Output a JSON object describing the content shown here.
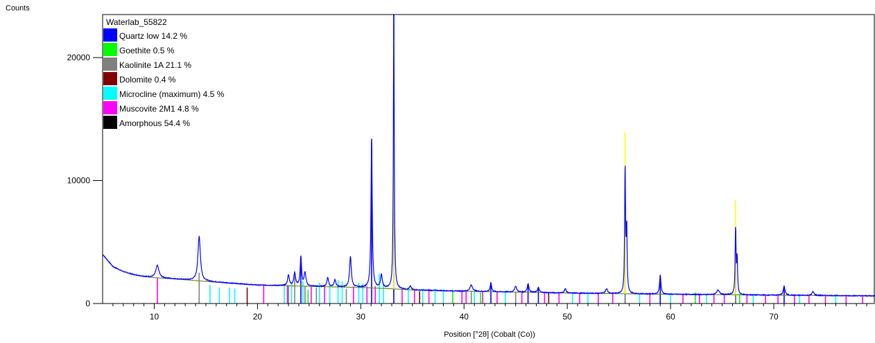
{
  "chart_data": {
    "type": "line",
    "title": "Waterlab_55822",
    "xlabel": "Position [°2θ] (Cobalt (Co))",
    "ylabel": "Counts",
    "xlim": [
      5,
      79.8
    ],
    "ylim": [
      0,
      23500
    ],
    "x_ticks": [
      10,
      20,
      30,
      40,
      50,
      60,
      70
    ],
    "y_ticks": [
      0,
      10000,
      20000
    ],
    "legend_position": "top-left",
    "background": {
      "baseline": [
        [
          5,
          4000
        ],
        [
          6,
          3000
        ],
        [
          7,
          2600
        ],
        [
          8,
          2350
        ],
        [
          9,
          2200
        ],
        [
          10,
          2100
        ],
        [
          12,
          2000
        ],
        [
          15,
          1800
        ],
        [
          20,
          1500
        ],
        [
          25,
          1400
        ],
        [
          30,
          1300
        ],
        [
          33,
          1200
        ],
        [
          35,
          1100
        ],
        [
          40,
          1000
        ],
        [
          50,
          850
        ],
        [
          60,
          750
        ],
        [
          70,
          680
        ],
        [
          79.8,
          620
        ]
      ]
    },
    "peaks": [
      {
        "x": 10.3,
        "y": 3100,
        "w": 0.18
      },
      {
        "x": 14.35,
        "y": 5500,
        "w": 0.14
      },
      {
        "x": 23.0,
        "y": 2300,
        "w": 0.1
      },
      {
        "x": 23.6,
        "y": 2500,
        "w": 0.1
      },
      {
        "x": 24.2,
        "y": 3800,
        "w": 0.08
      },
      {
        "x": 24.6,
        "y": 2500,
        "w": 0.1
      },
      {
        "x": 26.8,
        "y": 2100,
        "w": 0.1
      },
      {
        "x": 27.5,
        "y": 1900,
        "w": 0.1
      },
      {
        "x": 29.0,
        "y": 3800,
        "w": 0.1
      },
      {
        "x": 31.05,
        "y": 13400,
        "w": 0.07
      },
      {
        "x": 32.0,
        "y": 2300,
        "w": 0.1
      },
      {
        "x": 33.2,
        "y": 23500,
        "w": 0.05
      },
      {
        "x": 34.8,
        "y": 1400,
        "w": 0.1
      },
      {
        "x": 40.7,
        "y": 1500,
        "w": 0.15
      },
      {
        "x": 42.6,
        "y": 1700,
        "w": 0.08
      },
      {
        "x": 45.0,
        "y": 1400,
        "w": 0.12
      },
      {
        "x": 46.2,
        "y": 1600,
        "w": 0.1
      },
      {
        "x": 47.2,
        "y": 1300,
        "w": 0.1
      },
      {
        "x": 49.8,
        "y": 1200,
        "w": 0.1
      },
      {
        "x": 53.8,
        "y": 1200,
        "w": 0.12
      },
      {
        "x": 55.6,
        "y": 11000,
        "w": 0.05
      },
      {
        "x": 55.75,
        "y": 6000,
        "w": 0.05
      },
      {
        "x": 59.0,
        "y": 2300,
        "w": 0.08
      },
      {
        "x": 64.6,
        "y": 1100,
        "w": 0.15
      },
      {
        "x": 66.3,
        "y": 6200,
        "w": 0.05
      },
      {
        "x": 66.45,
        "y": 3600,
        "w": 0.05
      },
      {
        "x": 71.0,
        "y": 1400,
        "w": 0.1
      },
      {
        "x": 73.8,
        "y": 950,
        "w": 0.12
      }
    ],
    "overlays": [
      {
        "x": 33.2,
        "y": 21500,
        "color": "#ffff00"
      },
      {
        "x": 55.6,
        "y": 13900,
        "color": "#ffff00"
      },
      {
        "x": 66.3,
        "y": 8400,
        "color": "#ffff00"
      }
    ],
    "series": [
      {
        "name": "Quartz low 14.2 %",
        "color": "#0000ff",
        "sticks": [
          [
            24.2,
            3800
          ],
          [
            31.05,
            13400
          ],
          [
            33.2,
            23500
          ],
          [
            42.6,
            1700
          ],
          [
            46.2,
            1600
          ],
          [
            47.2,
            1300
          ],
          [
            55.6,
            11000
          ],
          [
            59.0,
            2300
          ],
          [
            66.3,
            6200
          ],
          [
            71.0,
            1400
          ]
        ]
      },
      {
        "name": "Goethite 0.5 %",
        "color": "#00ff00",
        "sticks": [
          [
            24.9,
            1100
          ],
          [
            38.9,
            1000
          ],
          [
            41.6,
            900
          ],
          [
            62.4,
            900
          ],
          [
            66.7,
            800
          ]
        ]
      },
      {
        "name": "Kaolinite 1A 21.1 %",
        "color": "#808080",
        "sticks": [
          [
            14.35,
            2500
          ],
          [
            23.0,
            1500
          ],
          [
            23.6,
            2400
          ],
          [
            24.6,
            1400
          ],
          [
            25.7,
            1300
          ],
          [
            28.6,
            1200
          ],
          [
            40.7,
            1000
          ],
          [
            45.0,
            900
          ],
          [
            55.6,
            10900
          ],
          [
            66.3,
            6000
          ]
        ]
      },
      {
        "name": "Dolomite 0.4 %",
        "color": "#800000",
        "sticks": [
          [
            19.0,
            1300
          ],
          [
            35.7,
            1000
          ],
          [
            48.2,
            900
          ]
        ]
      },
      {
        "name": "Microcline (maximum) 4.5 %",
        "color": "#00ffff",
        "sticks": [
          [
            15.4,
            1500
          ],
          [
            16.3,
            1300
          ],
          [
            17.3,
            1300
          ],
          [
            17.8,
            1200
          ],
          [
            22.6,
            1500
          ],
          [
            23.3,
            1600
          ],
          [
            24.4,
            1800
          ],
          [
            26.0,
            1700
          ],
          [
            27.0,
            1600
          ],
          [
            27.8,
            1900
          ],
          [
            28.2,
            1800
          ],
          [
            29.8,
            1700
          ],
          [
            30.2,
            1600
          ],
          [
            31.8,
            2400
          ],
          [
            32.2,
            1700
          ],
          [
            34.6,
            1300
          ],
          [
            36.0,
            1200
          ],
          [
            37.2,
            1200
          ],
          [
            38.0,
            1100
          ],
          [
            41.0,
            1000
          ],
          [
            44.0,
            950
          ],
          [
            50.5,
            900
          ],
          [
            52.0,
            850
          ],
          [
            57.0,
            800
          ],
          [
            60.0,
            800
          ],
          [
            63.5,
            800
          ],
          [
            68.0,
            750
          ],
          [
            72.5,
            700
          ],
          [
            76.0,
            650
          ]
        ]
      },
      {
        "name": "Muscovite 2M1 4.8 %",
        "color": "#ff00ff",
        "sticks": [
          [
            10.3,
            2100
          ],
          [
            20.6,
            1500
          ],
          [
            22.9,
            1500
          ],
          [
            25.2,
            1400
          ],
          [
            26.5,
            1500
          ],
          [
            29.3,
            1400
          ],
          [
            30.6,
            1400
          ],
          [
            31.4,
            1400
          ],
          [
            34.0,
            1200
          ],
          [
            35.2,
            1200
          ],
          [
            36.6,
            1200
          ],
          [
            39.8,
            1000
          ],
          [
            40.2,
            1100
          ],
          [
            41.8,
            1000
          ],
          [
            43.2,
            1000
          ],
          [
            45.6,
            950
          ],
          [
            47.8,
            900
          ],
          [
            49.2,
            900
          ],
          [
            51.2,
            850
          ],
          [
            53.0,
            850
          ],
          [
            54.4,
            850
          ],
          [
            58.0,
            800
          ],
          [
            61.2,
            800
          ],
          [
            62.8,
            800
          ],
          [
            64.2,
            800
          ],
          [
            65.2,
            780
          ],
          [
            67.4,
            750
          ],
          [
            69.2,
            730
          ],
          [
            70.4,
            720
          ],
          [
            72.0,
            700
          ],
          [
            73.4,
            700
          ],
          [
            75.0,
            660
          ],
          [
            77.0,
            640
          ],
          [
            78.6,
            630
          ]
        ]
      },
      {
        "name": "Amorphous 54.4 %",
        "color": "#000000",
        "sticks": []
      }
    ]
  }
}
